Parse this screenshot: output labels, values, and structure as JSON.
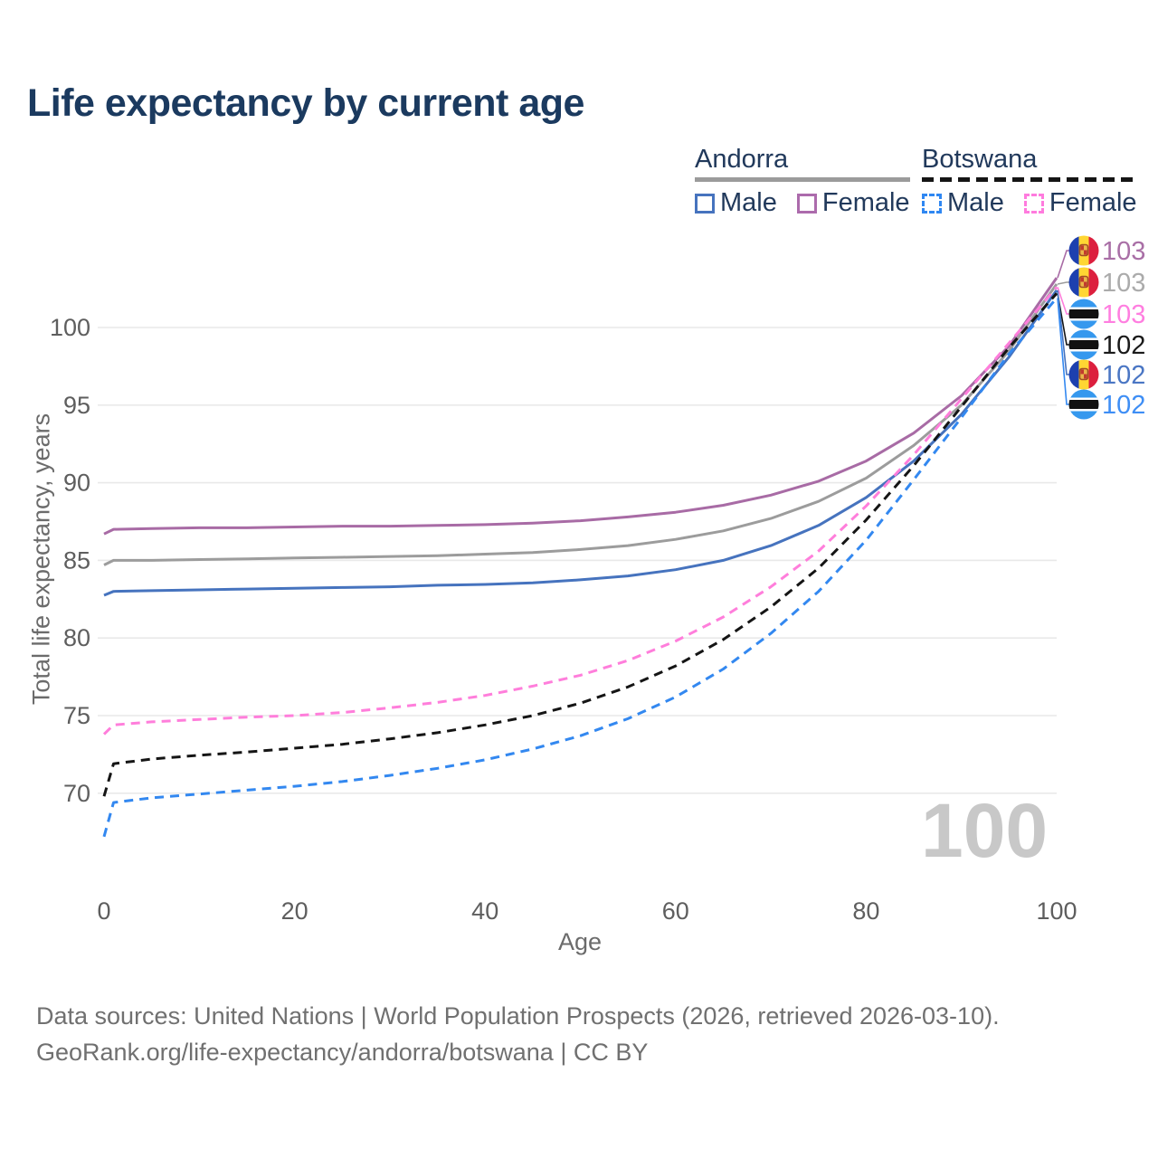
{
  "page": {
    "title": "Life expectancy by current age",
    "watermark_age": "100",
    "footer_line1": "Data sources: United Nations | World Population Prospects (2026, retrieved 2026-03-10).",
    "footer_line2": "GeoRank.org/life-expectancy/andorra/botswana | CC BY"
  },
  "legend": {
    "groups": [
      {
        "country": "Andorra",
        "line_style": "solid",
        "underline_color": "#9B9B9B",
        "items": [
          {
            "label": "Male",
            "color": "#4673BE"
          },
          {
            "label": "Female",
            "color": "#AC6BAC"
          }
        ]
      },
      {
        "country": "Botswana",
        "line_style": "dashed",
        "underline_color": "#151515",
        "items": [
          {
            "label": "Male",
            "color": "#2F87F2"
          },
          {
            "label": "Female",
            "color": "#FF7BDE"
          }
        ]
      }
    ]
  },
  "flags": {
    "andorra": {
      "blue": "#1D40AF",
      "yellow": "#FFD633",
      "red": "#DC1F3E",
      "shield_fill": "#E9B54A",
      "shield_border": "#A14E24",
      "shield_accent": "#C23A2E"
    },
    "botswana": {
      "blue": "#3598EE",
      "white": "#FFFFFF",
      "black": "#111111"
    }
  },
  "chart_data": {
    "type": "line",
    "title": "Life expectancy by current age",
    "xlabel": "Age",
    "ylabel": "Total life expectancy, years",
    "xlim": [
      0,
      100
    ],
    "ylim": [
      65,
      104
    ],
    "xticks": [
      0,
      20,
      40,
      60,
      80,
      100
    ],
    "yticks": [
      70,
      75,
      80,
      85,
      90,
      95,
      100
    ],
    "grid": "horizontal",
    "legend_position": "top-right",
    "x": [
      0,
      1,
      5,
      10,
      15,
      20,
      25,
      30,
      35,
      40,
      45,
      50,
      55,
      60,
      65,
      70,
      75,
      80,
      85,
      90,
      95,
      100
    ],
    "series": [
      {
        "name": "Andorra Female",
        "country": "andorra",
        "color": "#A86BA5",
        "dashed": false,
        "values": [
          86.7,
          87.0,
          87.05,
          87.1,
          87.1,
          87.15,
          87.2,
          87.2,
          87.25,
          87.3,
          87.4,
          87.55,
          87.8,
          88.1,
          88.55,
          89.2,
          90.1,
          91.4,
          93.2,
          95.6,
          98.8,
          103.2
        ]
      },
      {
        "name": "Andorra (both sexes)",
        "country": "andorra",
        "color": "#9C9C9C",
        "dashed": false,
        "values": [
          84.7,
          85.0,
          85.0,
          85.05,
          85.1,
          85.15,
          85.2,
          85.25,
          85.3,
          85.4,
          85.5,
          85.7,
          85.95,
          86.35,
          86.9,
          87.7,
          88.8,
          90.3,
          92.4,
          95.0,
          98.5,
          102.8
        ]
      },
      {
        "name": "Andorra Male",
        "country": "andorra",
        "color": "#4673BE",
        "dashed": false,
        "values": [
          82.75,
          83.0,
          83.05,
          83.1,
          83.15,
          83.2,
          83.25,
          83.3,
          83.4,
          83.45,
          83.55,
          83.75,
          84.0,
          84.4,
          85.0,
          85.95,
          87.25,
          89.05,
          91.4,
          94.4,
          98.1,
          102.4
        ]
      },
      {
        "name": "Botswana Female",
        "country": "botswana",
        "color": "#FF7EDB",
        "dashed": true,
        "values": [
          73.8,
          74.4,
          74.6,
          74.75,
          74.9,
          75.0,
          75.2,
          75.5,
          75.85,
          76.3,
          76.9,
          77.6,
          78.55,
          79.8,
          81.35,
          83.3,
          85.6,
          88.5,
          91.8,
          95.4,
          99.0,
          102.6
        ]
      },
      {
        "name": "Botswana (both sexes)",
        "country": "botswana",
        "color": "#151515",
        "dashed": true,
        "values": [
          69.8,
          71.9,
          72.2,
          72.45,
          72.65,
          72.9,
          73.15,
          73.5,
          73.9,
          74.4,
          75.0,
          75.8,
          76.85,
          78.2,
          79.9,
          82.0,
          84.5,
          87.6,
          91.1,
          94.9,
          98.7,
          102.2
        ]
      },
      {
        "name": "Botswana Male",
        "country": "botswana",
        "color": "#3388F0",
        "dashed": true,
        "values": [
          67.2,
          69.4,
          69.7,
          69.95,
          70.2,
          70.45,
          70.75,
          71.15,
          71.6,
          72.15,
          72.85,
          73.7,
          74.8,
          76.2,
          78.0,
          80.3,
          83.0,
          86.3,
          90.2,
          94.2,
          98.3,
          101.9
        ]
      }
    ],
    "end_labels": [
      {
        "series": 0,
        "country": "andorra",
        "value": "103",
        "color": "#A96FA6"
      },
      {
        "series": 1,
        "country": "andorra",
        "value": "103",
        "color": "#ABABAB"
      },
      {
        "series": 3,
        "country": "botswana",
        "value": "103",
        "color": "#FF7EE0"
      },
      {
        "series": 4,
        "country": "botswana",
        "value": "102",
        "color": "#1A1A1A"
      },
      {
        "series": 2,
        "country": "andorra",
        "value": "102",
        "color": "#4A76C4"
      },
      {
        "series": 5,
        "country": "botswana",
        "value": "102",
        "color": "#3E8EF5"
      }
    ]
  }
}
